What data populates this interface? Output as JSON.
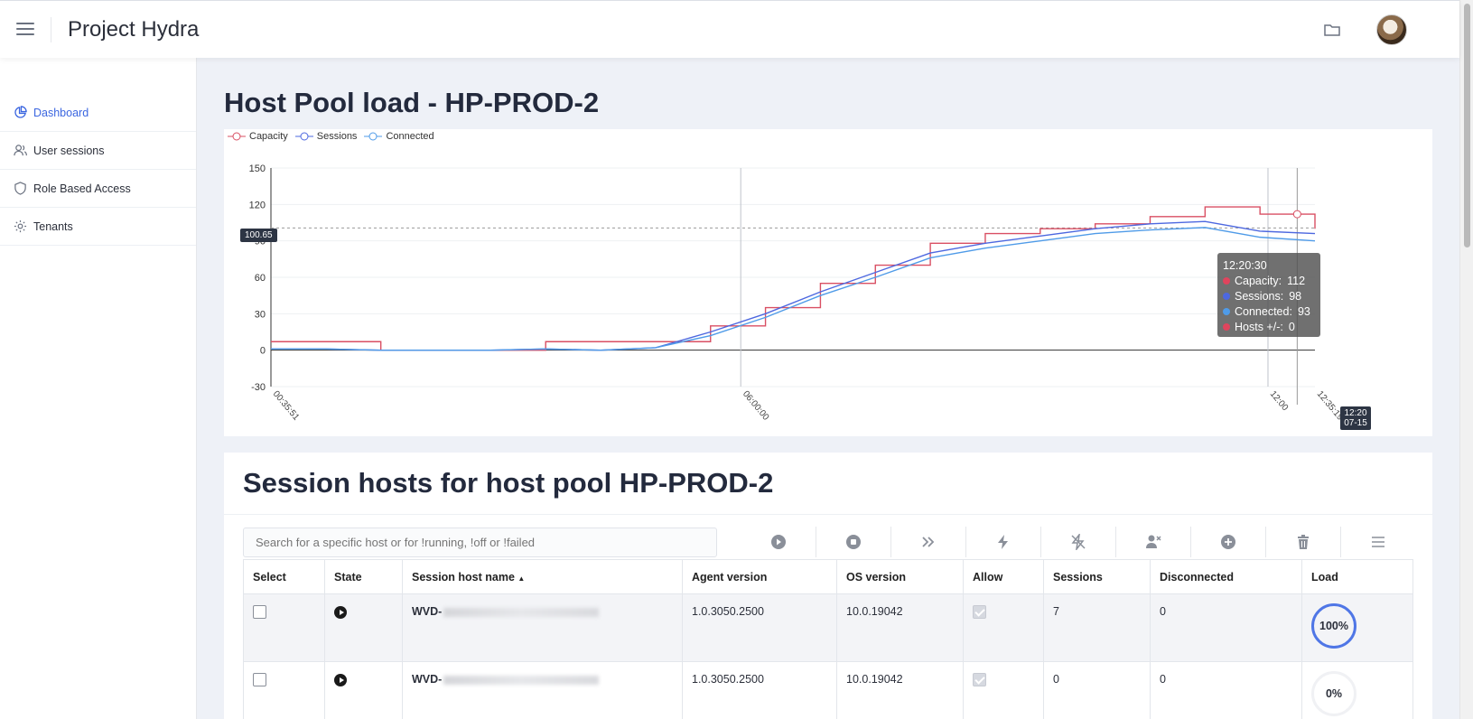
{
  "header": {
    "title": "Project Hydra"
  },
  "sidebar": {
    "items": [
      {
        "label": "Dashboard",
        "icon": "pie-chart-icon",
        "active": true
      },
      {
        "label": "User sessions",
        "icon": "users-icon"
      },
      {
        "label": "Role Based Access",
        "icon": "shield-icon"
      },
      {
        "label": "Tenants",
        "icon": "gear-icon"
      }
    ]
  },
  "chart_section": {
    "title": "Host Pool load - HP-PROD-2"
  },
  "chart_data": {
    "type": "line",
    "title": "",
    "xlabel": "",
    "ylabel": "",
    "ylim": [
      -30,
      150
    ],
    "yticks": [
      150,
      120,
      90,
      60,
      30,
      0,
      -30
    ],
    "xtick_labels": [
      "00:35:51",
      "06:00:00",
      "12:00",
      "12:35:19"
    ],
    "legend": {
      "position": "top-left"
    },
    "grid": true,
    "x": [
      "00:35",
      "01:00",
      "01:30",
      "05:00",
      "05:30",
      "06:00",
      "06:30",
      "07:00",
      "07:30",
      "08:00",
      "08:30",
      "09:00",
      "09:30",
      "10:00",
      "10:30",
      "11:00",
      "11:30",
      "12:00",
      "12:20",
      "12:35"
    ],
    "series": [
      {
        "name": "Capacity",
        "color": "#d94f63",
        "values": [
          7,
          7,
          0,
          0,
          0,
          7,
          7,
          7,
          20,
          35,
          55,
          70,
          88,
          96,
          100,
          104,
          110,
          118,
          112,
          100
        ]
      },
      {
        "name": "Sessions",
        "color": "#4d68e0",
        "values": [
          1,
          1,
          0,
          0,
          0,
          1,
          0,
          2,
          15,
          30,
          48,
          64,
          80,
          88,
          94,
          100,
          104,
          106,
          98,
          96
        ]
      },
      {
        "name": "Connected",
        "color": "#4f9be8",
        "values": [
          1,
          1,
          0,
          0,
          0,
          1,
          0,
          2,
          12,
          27,
          45,
          60,
          76,
          84,
          90,
          96,
          99,
          101,
          93,
          90
        ]
      }
    ],
    "crosshair": {
      "y_value_label": "100.65",
      "time_label_line1": "12:20",
      "time_label_line2": "07-15"
    },
    "tooltip": {
      "time": "12:20:30",
      "rows": [
        {
          "label": "Capacity:",
          "value": "112",
          "color": "#e0445d"
        },
        {
          "label": "Sessions:",
          "value": "98",
          "color": "#4d68e0"
        },
        {
          "label": "Connected:",
          "value": "93",
          "color": "#4f9be8"
        },
        {
          "label": "Hosts +/-:",
          "value": "0",
          "color": "#e0445d"
        }
      ]
    }
  },
  "hosts_section": {
    "title": "Session hosts for host pool HP-PROD-2",
    "search_placeholder": "Search for a specific host or for !running, !off or !failed",
    "toolbar": [
      "start-icon",
      "stop-icon",
      "fast-forward-icon",
      "power-icon",
      "power-off-icon",
      "user-remove-icon",
      "add-icon",
      "trash-icon",
      "menu-icon"
    ],
    "columns": [
      "Select",
      "State",
      "Session host name",
      "Agent version",
      "OS version",
      "Allow",
      "Sessions",
      "Disconnected",
      "Load"
    ],
    "sort_indicator": "▲",
    "rows": [
      {
        "name_prefix": "WVD-",
        "agent": "1.0.3050.2500",
        "os": "10.0.19042",
        "sessions": "7",
        "disconnected": "0",
        "load": "100%"
      },
      {
        "name_prefix": "WVD-",
        "agent": "1.0.3050.2500",
        "os": "10.0.19042",
        "sessions": "0",
        "disconnected": "0",
        "load": "0%"
      }
    ]
  }
}
